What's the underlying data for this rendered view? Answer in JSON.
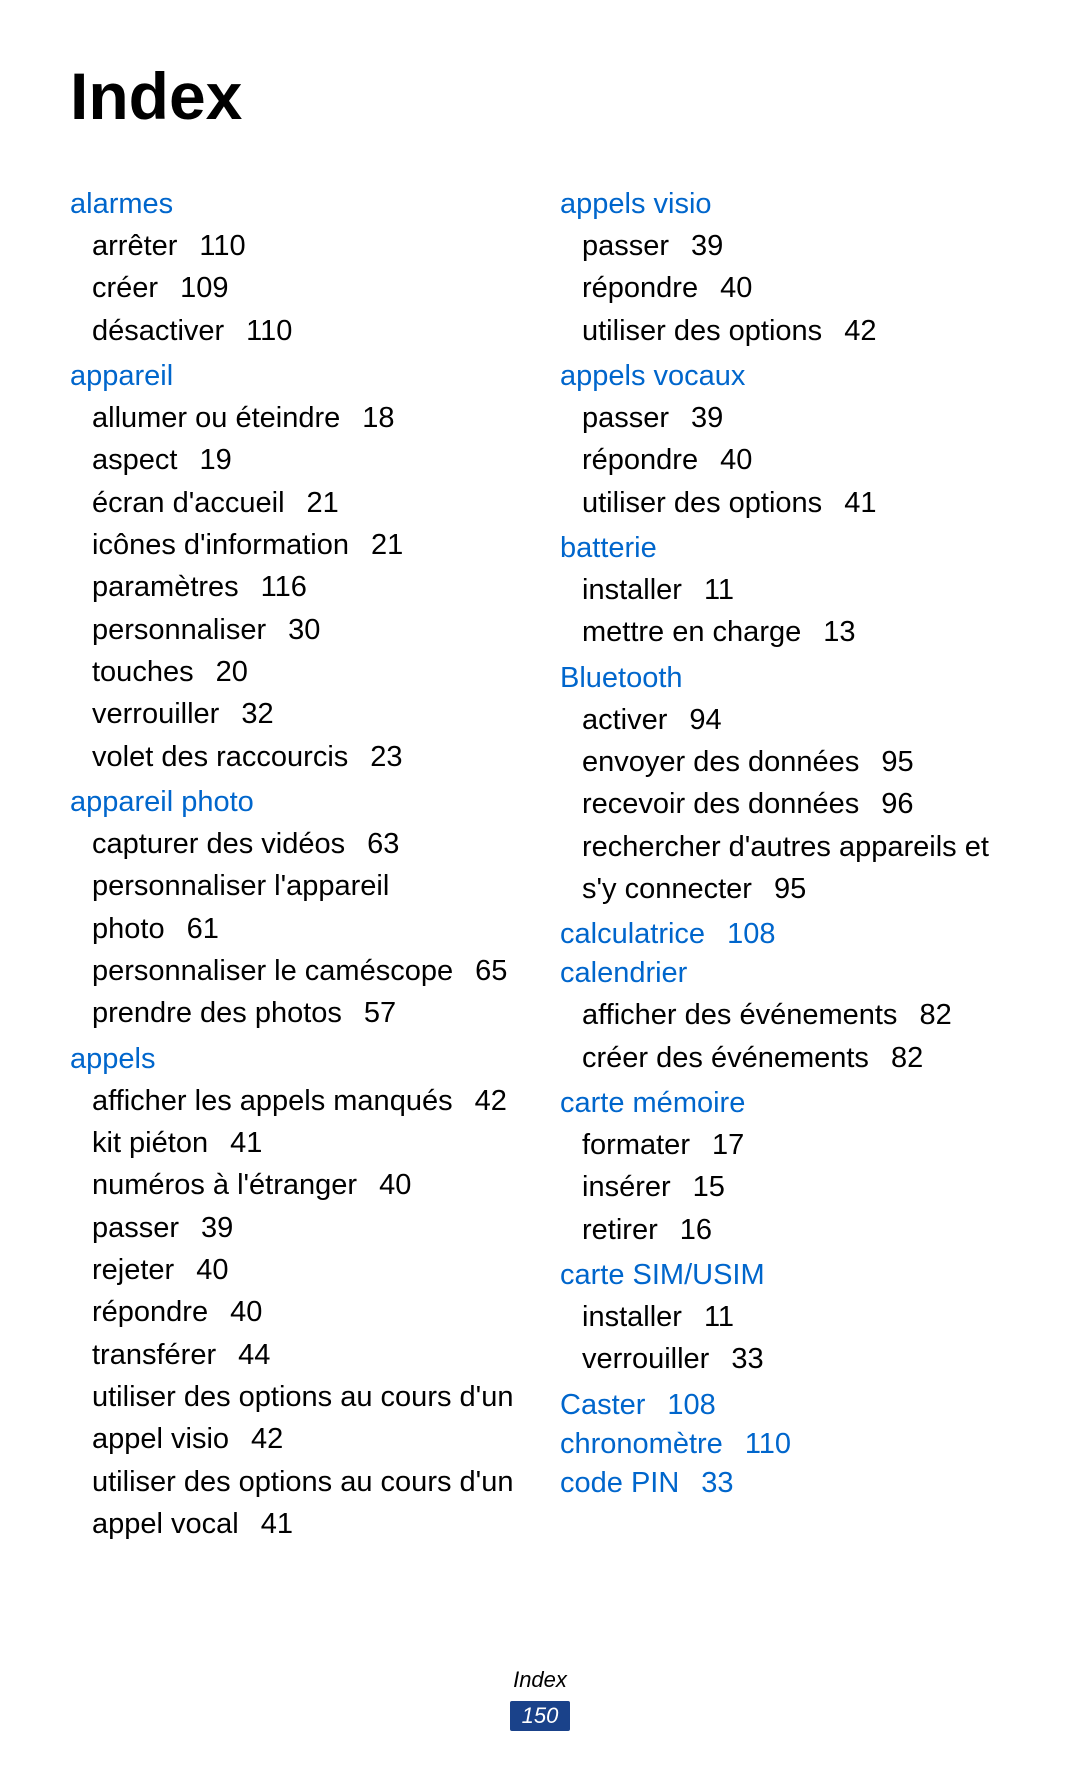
{
  "title": "Index",
  "footer": {
    "label": "Index",
    "page": "150"
  },
  "colors": {
    "heading": "#0066cc",
    "text": "#000000",
    "badge_bg": "#1a428a",
    "badge_fg": "#ffffff"
  },
  "left": [
    {
      "head": "alarmes",
      "page": null,
      "items": [
        {
          "label": "arrêter",
          "page": "110"
        },
        {
          "label": "créer",
          "page": "109"
        },
        {
          "label": "désactiver",
          "page": "110"
        }
      ]
    },
    {
      "head": "appareil",
      "page": null,
      "items": [
        {
          "label": "allumer ou éteindre",
          "page": "18"
        },
        {
          "label": "aspect",
          "page": "19"
        },
        {
          "label": "écran d'accueil",
          "page": "21"
        },
        {
          "label": "icônes d'information",
          "page": "21"
        },
        {
          "label": "paramètres",
          "page": "116"
        },
        {
          "label": "personnaliser",
          "page": "30"
        },
        {
          "label": "touches",
          "page": "20"
        },
        {
          "label": "verrouiller",
          "page": "32"
        },
        {
          "label": "volet des raccourcis",
          "page": "23"
        }
      ]
    },
    {
      "head": "appareil photo",
      "page": null,
      "items": [
        {
          "label": "capturer des vidéos",
          "page": "63"
        },
        {
          "label": "personnaliser l'appareil photo",
          "page": "61"
        },
        {
          "label": "personnaliser le caméscope",
          "page": "65"
        },
        {
          "label": "prendre des photos",
          "page": "57"
        }
      ]
    },
    {
      "head": "appels",
      "page": null,
      "items": [
        {
          "label": "afficher les appels manqués",
          "page": "42"
        },
        {
          "label": "kit piéton",
          "page": "41"
        },
        {
          "label": "numéros à l'étranger",
          "page": "40"
        },
        {
          "label": "passer",
          "page": "39"
        },
        {
          "label": "rejeter",
          "page": "40"
        },
        {
          "label": "répondre",
          "page": "40"
        },
        {
          "label": "transférer",
          "page": "44"
        },
        {
          "label": "utiliser des options au cours d'un appel visio",
          "page": "42"
        },
        {
          "label": "utiliser des options au cours d'un appel vocal",
          "page": "41"
        }
      ]
    }
  ],
  "right": [
    {
      "head": "appels visio",
      "page": null,
      "items": [
        {
          "label": "passer",
          "page": "39"
        },
        {
          "label": "répondre",
          "page": "40"
        },
        {
          "label": "utiliser des options",
          "page": "42"
        }
      ]
    },
    {
      "head": "appels vocaux",
      "page": null,
      "items": [
        {
          "label": "passer",
          "page": "39"
        },
        {
          "label": "répondre",
          "page": "40"
        },
        {
          "label": "utiliser des options",
          "page": "41"
        }
      ]
    },
    {
      "head": "batterie",
      "page": null,
      "items": [
        {
          "label": "installer",
          "page": "11"
        },
        {
          "label": "mettre en charge",
          "page": "13"
        }
      ]
    },
    {
      "head": "Bluetooth",
      "page": null,
      "items": [
        {
          "label": "activer",
          "page": "94"
        },
        {
          "label": "envoyer des données",
          "page": "95"
        },
        {
          "label": "recevoir des données",
          "page": "96"
        },
        {
          "label": "rechercher d'autres appareils et s'y connecter",
          "page": "95"
        }
      ]
    },
    {
      "head": "calculatrice",
      "page": "108",
      "items": []
    },
    {
      "head": "calendrier",
      "page": null,
      "items": [
        {
          "label": "afficher des événements",
          "page": "82"
        },
        {
          "label": "créer des événements",
          "page": "82"
        }
      ]
    },
    {
      "head": "carte mémoire",
      "page": null,
      "items": [
        {
          "label": "formater",
          "page": "17"
        },
        {
          "label": "insérer",
          "page": "15"
        },
        {
          "label": "retirer",
          "page": "16"
        }
      ]
    },
    {
      "head": "carte SIM/USIM",
      "page": null,
      "items": [
        {
          "label": "installer",
          "page": "11"
        },
        {
          "label": "verrouiller",
          "page": "33"
        }
      ]
    },
    {
      "head": "Caster",
      "page": "108",
      "items": []
    },
    {
      "head": "chronomètre",
      "page": "110",
      "items": []
    },
    {
      "head": "code PIN",
      "page": "33",
      "items": []
    }
  ]
}
